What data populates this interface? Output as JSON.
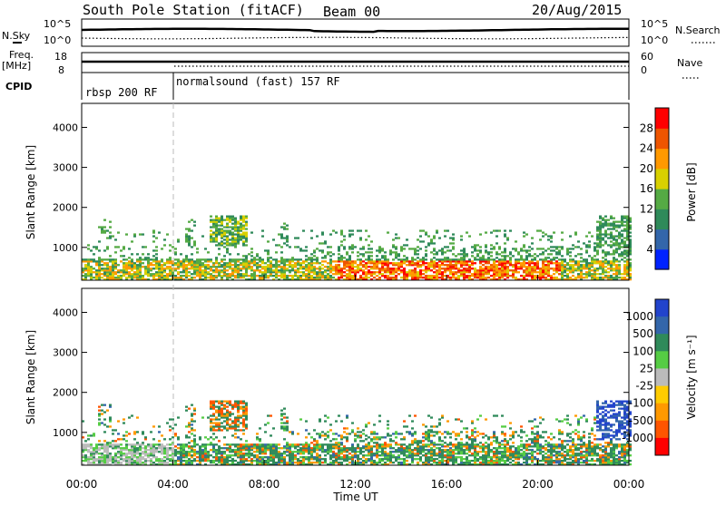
{
  "header": {
    "station": "South Pole Station (fitACF)",
    "beam": "Beam 00",
    "date": "20/Aug/2015"
  },
  "top_panels": {
    "nsky_label": "N.Sky",
    "nsky_ticks": [
      "10^5",
      "10^0"
    ],
    "nsearch_label": "N.Search",
    "nsearch_ticks": [
      "10^5",
      "10^0"
    ],
    "freq_label_1": "Freq.",
    "freq_label_2": "[MHz]",
    "freq_ticks": [
      "18",
      "8"
    ],
    "nave_label": "Nave",
    "nave_ticks": [
      "60",
      "0"
    ],
    "cpid_label": "CPID",
    "cpid_segments": [
      {
        "start_hour": 0,
        "end_hour": 4,
        "label": "rbsp 200 RF"
      },
      {
        "start_hour": 4,
        "end_hour": 24,
        "label": "normalsound (fast) 157 RF"
      }
    ]
  },
  "chart_data": [
    {
      "type": "heatmap",
      "name": "power-panel",
      "ylabel": "Slant Range [km]",
      "xlabel": "",
      "ylim": [
        180,
        4600
      ],
      "xlim": [
        0,
        24
      ],
      "yticks": [
        "1000",
        "2000",
        "3000",
        "4000"
      ],
      "colorbar": {
        "label": "Power [dB]",
        "tick_labels": [
          "4",
          "8",
          "12",
          "16",
          "20",
          "24",
          "28"
        ],
        "colors": [
          "#0022ff",
          "#3366aa",
          "#2f8a5a",
          "#55aa44",
          "#d8d000",
          "#ff9900",
          "#ee5500",
          "#ff0000"
        ],
        "range": [
          0,
          32
        ]
      }
    },
    {
      "type": "heatmap",
      "name": "velocity-panel",
      "ylabel": "Slant Range [km]",
      "xlabel": "Time UT",
      "ylim": [
        180,
        4600
      ],
      "xlim": [
        0,
        24
      ],
      "yticks": [
        "1000",
        "2000",
        "3000",
        "4000"
      ],
      "xticks": [
        "00:00",
        "04:00",
        "08:00",
        "12:00",
        "16:00",
        "20:00",
        "00:00"
      ],
      "colorbar": {
        "label": "Velocity [m s⁻¹]",
        "tick_labels": [
          "1000",
          "500",
          "100",
          "25",
          "-25",
          "-100",
          "-500",
          "-1000"
        ],
        "colors": [
          "#2244cc",
          "#3366aa",
          "#2f8a5a",
          "#55cc44",
          "#bbbbbb",
          "#ffcc00",
          "#ff9900",
          "#ff5500",
          "#ff0000"
        ]
      }
    }
  ]
}
